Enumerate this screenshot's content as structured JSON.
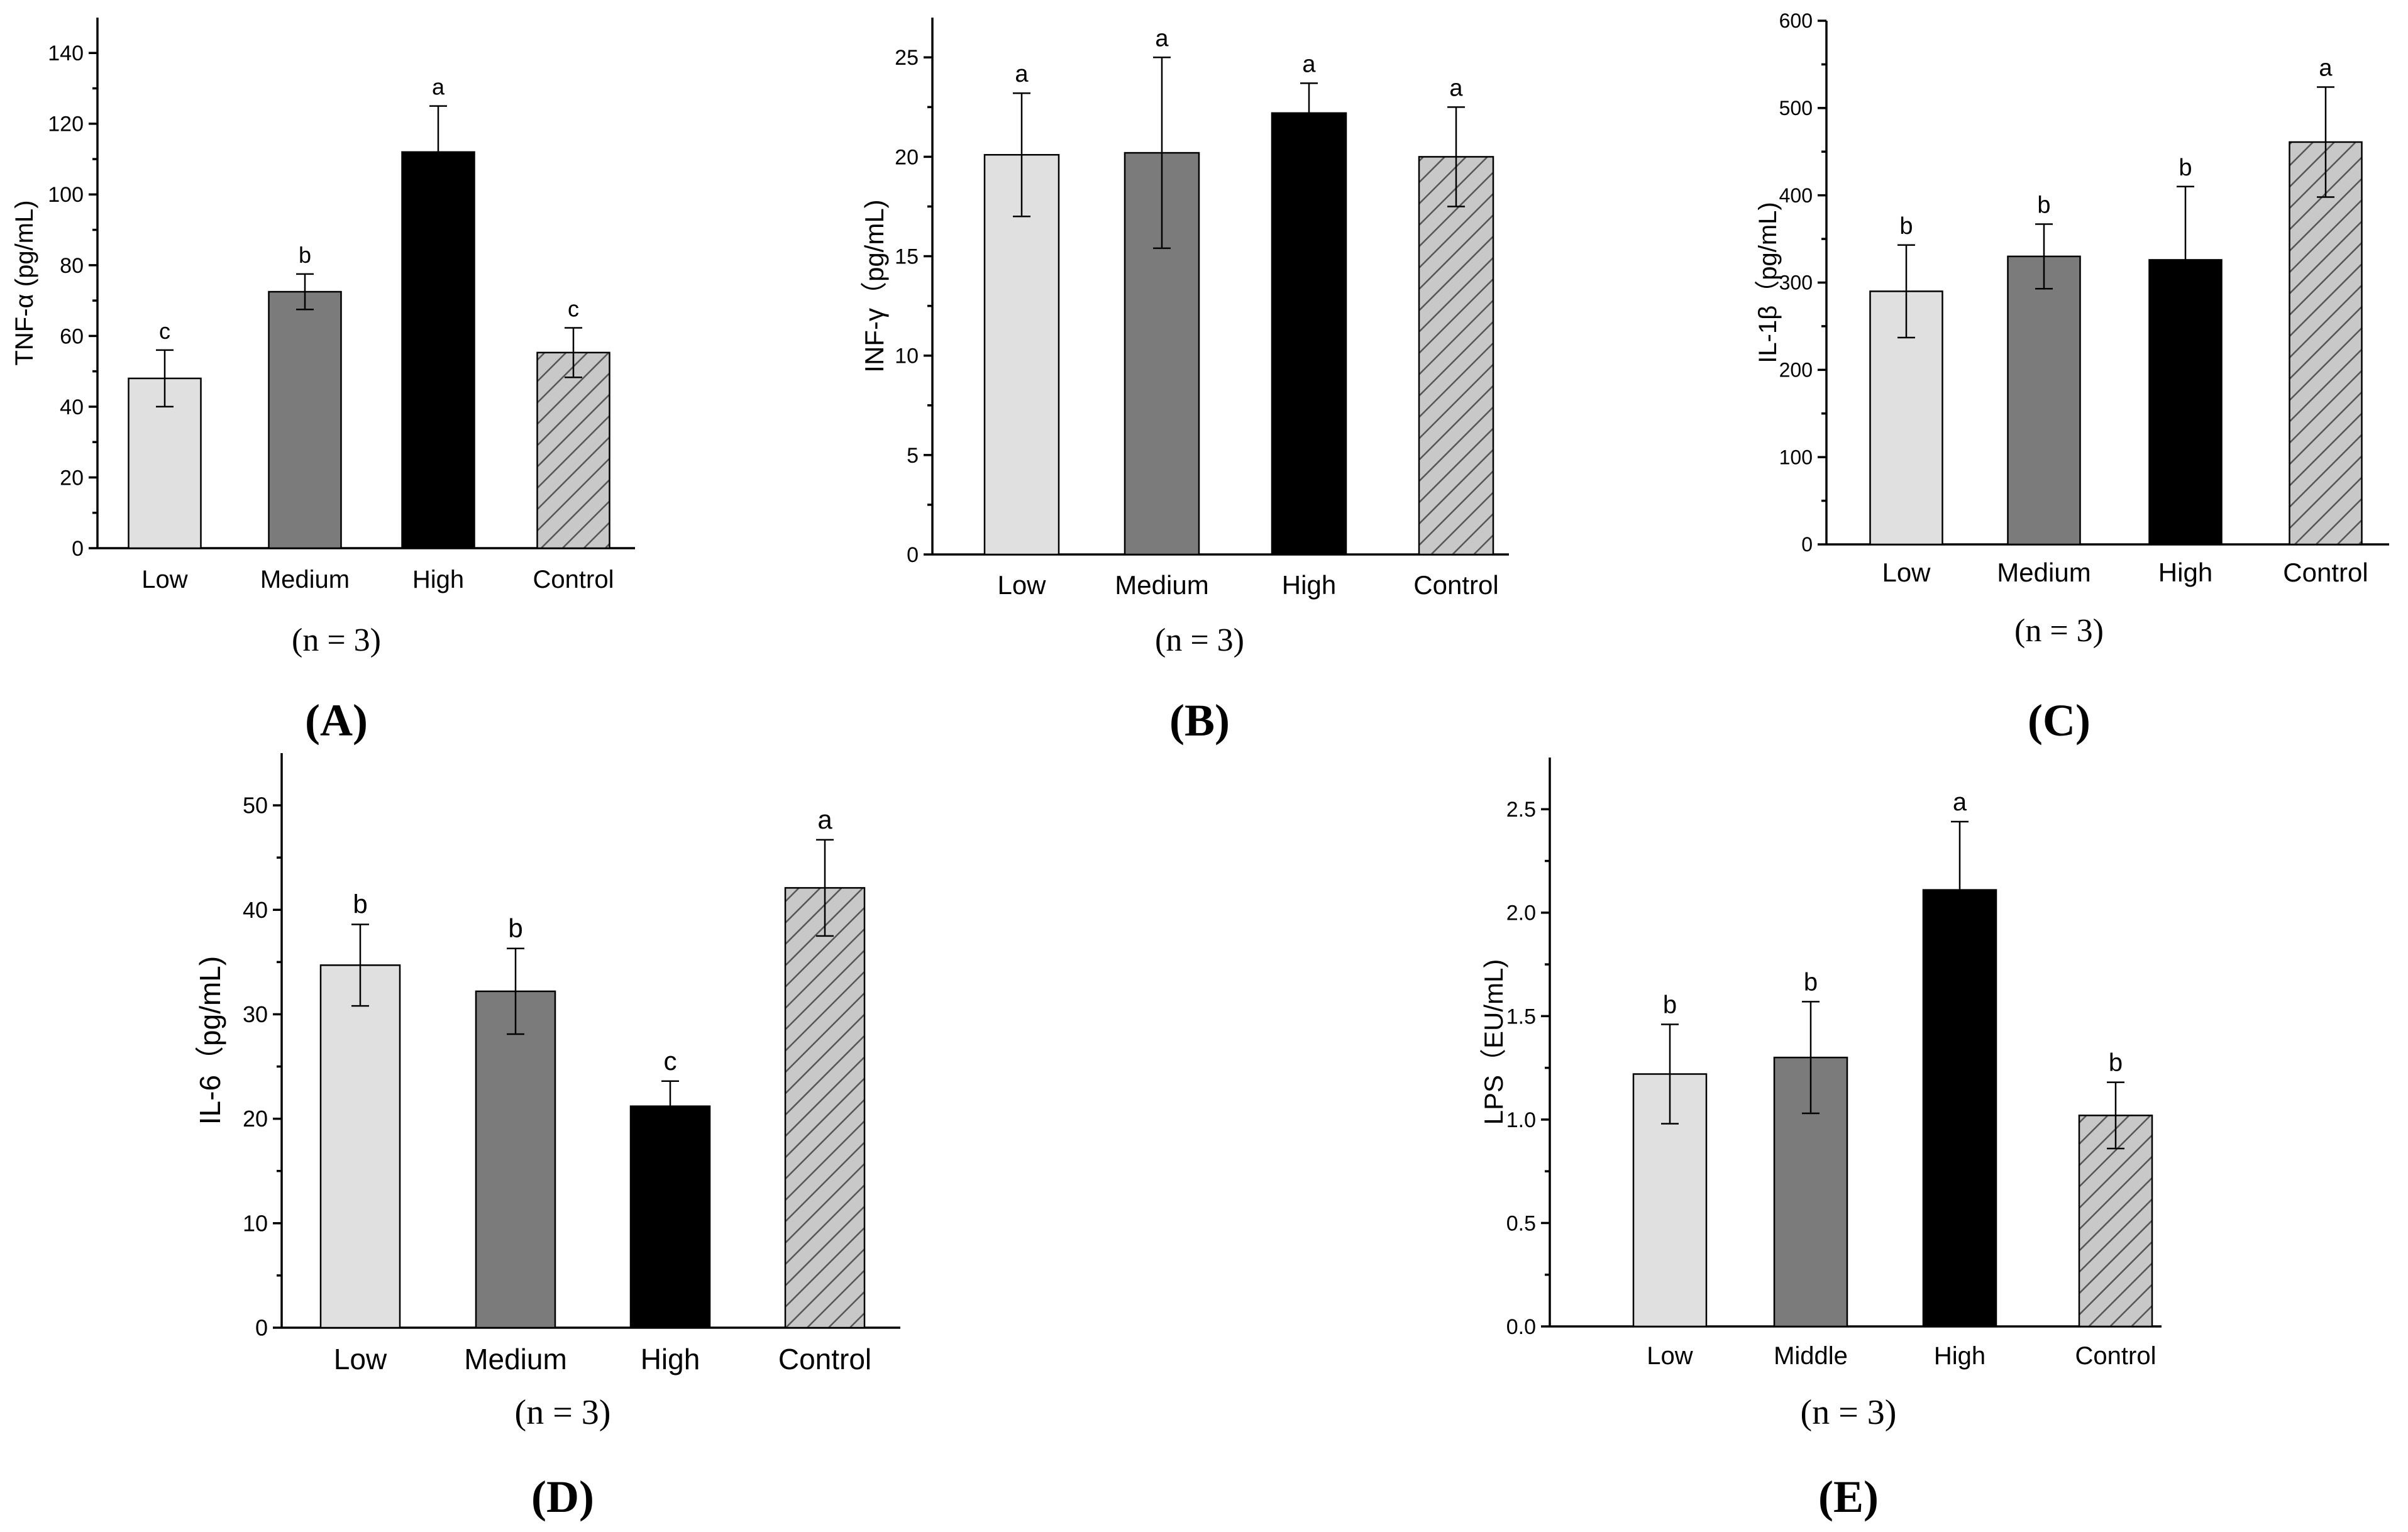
{
  "colors": {
    "low": "#e0e0e0",
    "medium": "#7b7b7b",
    "high": "#000000",
    "control": "#c8c8c8",
    "hatch": "#555555"
  },
  "chart_data": [
    {
      "type": "bar",
      "panel": "(A)",
      "note": "(n = 3)",
      "ylabel": "TNF-α (pg/mL)",
      "categories": [
        "Low",
        "Medium",
        "High",
        "Control"
      ],
      "values": [
        48,
        72.5,
        112,
        55.3
      ],
      "errors": [
        8,
        5,
        13,
        7
      ],
      "letters": [
        "c",
        "b",
        "a",
        "c"
      ],
      "ylim": [
        0,
        150
      ],
      "yticks": [
        0,
        20,
        40,
        60,
        80,
        100,
        120,
        140
      ],
      "tick_labels": [
        "0",
        "20",
        "40",
        "60",
        "80",
        "100",
        "120",
        "140"
      ]
    },
    {
      "type": "bar",
      "panel": "(B)",
      "note": "(n = 3)",
      "ylabel": "INF-γ（pg/mL)",
      "categories": [
        "Low",
        "Medium",
        "High",
        "Control"
      ],
      "values": [
        20.1,
        20.2,
        22.2,
        20.0
      ],
      "errors": [
        3.1,
        4.8,
        1.5,
        2.5
      ],
      "letters": [
        "a",
        "a",
        "a",
        "a"
      ],
      "ylim": [
        0,
        27
      ],
      "yticks": [
        0,
        5,
        10,
        15,
        20,
        25
      ],
      "tick_labels": [
        "0",
        "5",
        "10",
        "15",
        "20",
        "25"
      ]
    },
    {
      "type": "bar",
      "panel": "(C)",
      "note": "(n = 3)",
      "ylabel": "IL-1β（pg/mL)",
      "categories": [
        "Low",
        "Medium",
        "High",
        "Control"
      ],
      "values": [
        290,
        330,
        326,
        461
      ],
      "errors": [
        53,
        37,
        84,
        63
      ],
      "letters": [
        "b",
        "b",
        "b",
        "a"
      ],
      "ylim": [
        0,
        600
      ],
      "yticks": [
        0,
        100,
        200,
        300,
        400,
        500,
        600
      ],
      "tick_labels": [
        "0",
        "100",
        "200",
        "300",
        "400",
        "500",
        "600"
      ]
    },
    {
      "type": "bar",
      "panel": "(D)",
      "note": "(n = 3)",
      "ylabel": "IL-6（pg/mL)",
      "categories": [
        "Low",
        "Medium",
        "High",
        "Control"
      ],
      "values": [
        34.7,
        32.2,
        21.2,
        42.1
      ],
      "errors": [
        3.9,
        4.1,
        2.4,
        4.6
      ],
      "letters": [
        "b",
        "b",
        "c",
        "a"
      ],
      "ylim": [
        0,
        55
      ],
      "yticks": [
        0,
        10,
        20,
        30,
        40,
        50
      ],
      "tick_labels": [
        "0",
        "10",
        "20",
        "30",
        "40",
        "50"
      ]
    },
    {
      "type": "bar",
      "panel": "(E)",
      "note": "(n = 3)",
      "ylabel": "LPS（EU/mL)",
      "categories": [
        "Low",
        "Middle",
        "High",
        "Control"
      ],
      "values": [
        1.22,
        1.3,
        2.11,
        1.02
      ],
      "errors": [
        0.24,
        0.27,
        0.33,
        0.16
      ],
      "letters": [
        "b",
        "b",
        "a",
        "b"
      ],
      "ylim": [
        0,
        2.75
      ],
      "yticks": [
        0,
        0.5,
        1.0,
        1.5,
        2.0,
        2.5
      ],
      "tick_labels": [
        "0.0",
        "0.5",
        "1.0",
        "1.5",
        "2.0",
        "2.5"
      ]
    }
  ]
}
